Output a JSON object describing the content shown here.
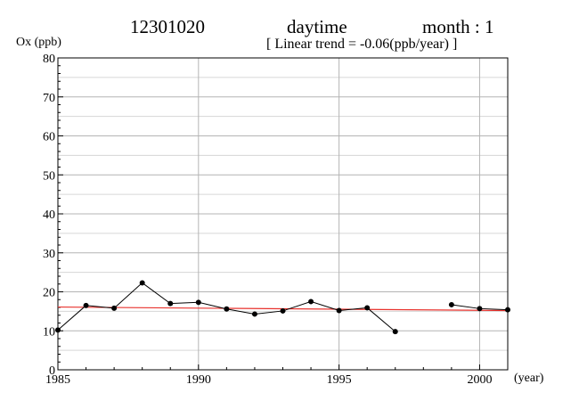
{
  "header": {
    "station": "12301020",
    "period": "daytime",
    "month_label": "month : 1",
    "trend_label": "[ Linear trend = -0.06(ppb/year) ]"
  },
  "chart_data": {
    "type": "line",
    "ylabel": "Ox (ppb)",
    "xlabel": "(year)",
    "xlim": [
      1985,
      2001
    ],
    "ylim": [
      0,
      80
    ],
    "x_ticks": [
      1985,
      1990,
      1995,
      2000
    ],
    "y_ticks": [
      0,
      10,
      20,
      30,
      40,
      50,
      60,
      70,
      80
    ],
    "grid": true,
    "series": [
      {
        "color": "#000000",
        "points": [
          [
            1985,
            10.2
          ],
          [
            1986,
            16.5
          ],
          [
            1987,
            15.8
          ],
          [
            1988,
            22.3
          ],
          [
            1989,
            17.0
          ],
          [
            1990,
            17.3
          ],
          [
            1991,
            15.6
          ],
          [
            1992,
            14.3
          ],
          [
            1993,
            15.1
          ],
          [
            1994,
            17.5
          ],
          [
            1995,
            15.2
          ],
          [
            1996,
            15.9
          ],
          [
            1997,
            9.8
          ],
          [
            1998,
            null
          ],
          [
            1999,
            16.7
          ],
          [
            2000,
            15.7
          ],
          [
            2001,
            15.4
          ]
        ]
      }
    ],
    "trend": {
      "color": "#e8322d",
      "y_at_1985": 16.1,
      "y_at_2001": 15.2
    }
  }
}
